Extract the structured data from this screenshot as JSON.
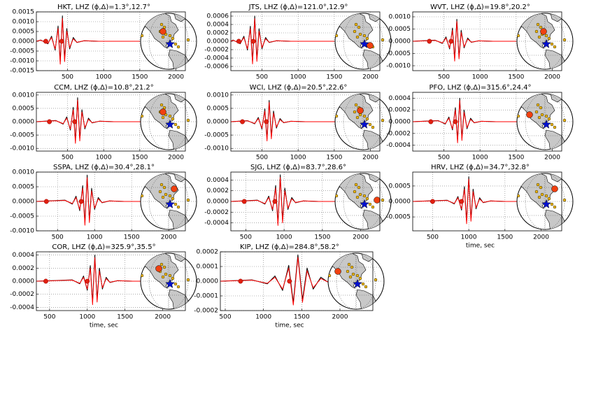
{
  "chart_data": [
    {
      "type": "line",
      "title": "HKT, LHZ (ϕ,Δ)=1.3°,12.7°",
      "xlim": [
        70,
        2130
      ],
      "xticks": [
        500,
        1000,
        1500,
        2000
      ],
      "ylim": [
        -0.0015,
        0.0015
      ],
      "yticks": [
        0.0015,
        {
          "value": 0.001,
          "label": "0.0010"
        },
        0.0005,
        {
          "value": 0,
          "label": "0.0000"
        },
        -0.0005,
        {
          "value": -0.001,
          "label": "-0.0010"
        },
        -0.0015
      ],
      "grid": true,
      "x": [
        70,
        130,
        230,
        280,
        330,
        370,
        400,
        430,
        460,
        490,
        530,
        580,
        630,
        730,
        930,
        1500
      ],
      "series": [
        {
          "color": "#000000",
          "values": [
            0,
            6.5e-05,
            -0.00013,
            0.00026,
            -0.000455,
            0.00078,
            -0.00104,
            0.0013,
            -0.00091,
            0.00065,
            -0.00039,
            0.000195,
            -6.5e-05,
            2.6e-05,
            0,
            0
          ]
        },
        {
          "color": "#ff0000",
          "values": [
            0,
            5.2e-05,
            -0.000104,
            0.000195,
            -0.00039,
            0.00065,
            -0.00117,
            0.00117,
            -0.00104,
            0.00052,
            -0.000325,
            0.00013,
            -5.2e-05,
            2.6e-05,
            0,
            0
          ]
        }
      ],
      "picks": [
        200,
        420
      ]
    },
    {
      "type": "line",
      "title": "JTS, LHZ (ϕ,Δ)=121.0°,12.9°",
      "xlim": [
        70,
        2130
      ],
      "xticks": [
        500,
        1000,
        1500,
        2000
      ],
      "ylim": [
        -0.0007,
        0.0007
      ],
      "yticks": [
        0.0006,
        0.0004,
        0.0002,
        {
          "value": 0,
          "label": "0.0000"
        },
        -0.0002,
        -0.0004,
        -0.0006
      ],
      "grid": true,
      "x": [
        70,
        100,
        200,
        250,
        300,
        340,
        370,
        400,
        430,
        460,
        500,
        550,
        600,
        700,
        900,
        1500
      ],
      "series": [
        {
          "color": "#000000",
          "values": [
            0,
            3e-05,
            -6e-05,
            0.00012,
            -0.00021,
            0.00036,
            -0.00048,
            0.0006,
            -0.00042,
            0.0003,
            -0.00018,
            9e-05,
            -3e-05,
            1.2e-05,
            0,
            0
          ]
        },
        {
          "color": "#ff0000",
          "values": [
            0,
            2.4e-05,
            -4.8e-05,
            9e-05,
            -0.00018,
            0.0003,
            -0.00054,
            0.00054,
            -0.00048,
            0.00024,
            -0.00015,
            6e-05,
            -2.4e-05,
            1.2e-05,
            0,
            0
          ]
        }
      ],
      "picks": [
        180,
        380
      ]
    },
    {
      "type": "line",
      "title": "WVT, LHZ (ϕ,Δ)=19.8°,20.2°",
      "xlim": [
        70,
        2130
      ],
      "xticks": [
        500,
        1000,
        1500,
        2000
      ],
      "ylim": [
        -0.0012,
        0.0012
      ],
      "yticks": [
        {
          "value": 0.001,
          "label": "0.0010"
        },
        0.0005,
        {
          "value": 0,
          "label": "0.0000"
        },
        -0.0005,
        {
          "value": -0.001,
          "label": "-0.0010"
        }
      ],
      "grid": true,
      "x": [
        70,
        380,
        480,
        530,
        580,
        620,
        650,
        680,
        710,
        740,
        780,
        830,
        880,
        980,
        1180,
        1500
      ],
      "series": [
        {
          "color": "#000000",
          "values": [
            0,
            4.5e-05,
            -9e-05,
            0.00018,
            -0.000315,
            0.00054,
            -0.00072,
            0.0009,
            -0.00063,
            0.00045,
            -0.00027,
            0.000135,
            -4.5e-05,
            1.8e-05,
            0,
            0
          ]
        },
        {
          "color": "#ff0000",
          "values": [
            0,
            3.6e-05,
            -7.2e-05,
            0.000135,
            -0.00027,
            0.00045,
            -0.00081,
            0.00081,
            -0.00072,
            0.00036,
            -0.000225,
            9e-05,
            -3.6e-05,
            1.8e-05,
            0,
            0
          ]
        }
      ],
      "picks": [
        300,
        600
      ]
    },
    {
      "type": "line",
      "title": "CCM, LHZ (ϕ,Δ)=10.8°,21.2°",
      "xlim": [
        70,
        2130
      ],
      "xticks": [
        500,
        1000,
        1500,
        2000
      ],
      "ylim": [
        -0.0011,
        0.0011
      ],
      "yticks": [
        {
          "value": 0.001,
          "label": "0.0010"
        },
        0.0005,
        {
          "value": 0,
          "label": "0.0000"
        },
        -0.0005,
        {
          "value": -0.001,
          "label": "-0.0010"
        }
      ],
      "grid": true,
      "x": [
        70,
        340,
        440,
        490,
        540,
        580,
        610,
        640,
        670,
        700,
        740,
        790,
        840,
        940,
        1140,
        1600
      ],
      "series": [
        {
          "color": "#000000",
          "values": [
            0,
            4.5e-05,
            -9e-05,
            0.00018,
            -0.000315,
            0.00054,
            -0.00072,
            0.0009,
            -0.00063,
            0.00045,
            -0.00027,
            0.000135,
            -4.5e-05,
            1.8e-05,
            0,
            0
          ]
        },
        {
          "color": "#ff0000",
          "values": [
            0,
            3.6e-05,
            -7.2e-05,
            0.000135,
            -0.00027,
            0.00045,
            -0.00081,
            0.00081,
            -0.00072,
            0.00036,
            -0.000225,
            9e-05,
            -3.6e-05,
            1.8e-05,
            0,
            0
          ]
        }
      ],
      "picks": [
        250,
        600
      ]
    },
    {
      "type": "line",
      "title": "WCI, LHZ (ϕ,Δ)=20.5°,22.6°",
      "xlim": [
        70,
        2130
      ],
      "xticks": [
        500,
        1000,
        1500,
        2000
      ],
      "ylim": [
        -0.0011,
        0.0011
      ],
      "yticks": [
        {
          "value": 0.001,
          "label": "0.0010"
        },
        0.0005,
        {
          "value": 0,
          "label": "0.0000"
        },
        -0.0005,
        {
          "value": -0.001,
          "label": "-0.0010"
        }
      ],
      "grid": true,
      "x": [
        70,
        300,
        400,
        450,
        500,
        540,
        570,
        600,
        630,
        660,
        700,
        750,
        800,
        900,
        1100,
        1600
      ],
      "series": [
        {
          "color": "#000000",
          "values": [
            0,
            4e-05,
            -8e-05,
            0.00016,
            -0.00028,
            0.00048,
            -0.00064,
            0.0008,
            -0.00056,
            0.0004,
            -0.00024,
            0.00012,
            -4e-05,
            1.6e-05,
            0,
            0
          ]
        },
        {
          "color": "#ff0000",
          "values": [
            0,
            3.2e-05,
            -6.4e-05,
            0.00012,
            -0.00024,
            0.0004,
            -0.00072,
            0.00072,
            -0.00064,
            0.00032,
            -0.0002,
            8e-05,
            -3.2e-05,
            1.6e-05,
            0,
            0
          ]
        }
      ],
      "picks": [
        230,
        560
      ]
    },
    {
      "type": "line",
      "title": "PFO, LHZ (ϕ,Δ)=315.6°,24.4°",
      "xlim": [
        70,
        2130
      ],
      "xticks": [
        500,
        1000,
        1500,
        2000
      ],
      "ylim": [
        -0.0005,
        0.0005
      ],
      "yticks": [
        0.0004,
        0.0002,
        {
          "value": 0,
          "label": "0.0000"
        },
        -0.0002,
        -0.0004
      ],
      "grid": true,
      "x": [
        70,
        420,
        520,
        570,
        620,
        660,
        690,
        720,
        750,
        780,
        820,
        870,
        920,
        1020,
        1220,
        1700
      ],
      "series": [
        {
          "color": "#000000",
          "values": [
            0,
            2e-05,
            -4e-05,
            8e-05,
            -0.00014,
            0.00024,
            -0.00032,
            0.0004,
            -0.00028,
            0.0002,
            -0.00012,
            6e-05,
            -2e-05,
            8e-06,
            0,
            0
          ]
        },
        {
          "color": "#ff0000",
          "values": [
            0,
            1.6e-05,
            -3.2e-05,
            6e-05,
            -0.00012,
            0.0002,
            -0.00036,
            0.00036,
            -0.00032,
            0.00016,
            -0.0001,
            4e-05,
            -1.6e-05,
            8e-06,
            0,
            0
          ]
        }
      ],
      "picks": [
        320,
        660
      ]
    },
    {
      "type": "line",
      "title": "SSPA, LHZ (ϕ,Δ)=30.4°,28.1°",
      "xlim": [
        215,
        2225
      ],
      "xticks": [
        500,
        1000,
        1500,
        2000
      ],
      "ylim": [
        -0.001,
        0.001
      ],
      "yticks": [
        {
          "value": 0.001,
          "label": "0.0010"
        },
        0.0005,
        {
          "value": 0,
          "label": "0.0000"
        },
        -0.0005,
        {
          "value": -0.001,
          "label": "-0.0010"
        }
      ],
      "grid": true,
      "x": [
        215,
        600,
        700,
        750,
        800,
        840,
        870,
        900,
        930,
        960,
        1000,
        1050,
        1100,
        1200,
        1400,
        1800
      ],
      "series": [
        {
          "color": "#000000",
          "values": [
            0,
            4.5e-05,
            -9e-05,
            0.00018,
            -0.000315,
            0.00054,
            -0.00072,
            0.0009,
            -0.00063,
            0.00045,
            -0.00027,
            0.000135,
            -4.5e-05,
            1.8e-05,
            0,
            0
          ]
        },
        {
          "color": "#ff0000",
          "values": [
            0,
            3.6e-05,
            -7.2e-05,
            0.000135,
            -0.00027,
            0.00045,
            -0.00081,
            0.00081,
            -0.00072,
            0.00036,
            -0.000225,
            9e-05,
            -3.6e-05,
            1.8e-05,
            0,
            0
          ]
        }
      ],
      "picks": [
        350,
        820
      ]
    },
    {
      "type": "line",
      "title": "SJG, LHZ (ϕ,Δ)=83.7°,28.6°",
      "xlim": [
        305,
        2250
      ],
      "xticks": [
        500,
        1000,
        1500,
        2000
      ],
      "ylim": [
        -0.00055,
        0.00055
      ],
      "yticks": [
        0.0004,
        0.0002,
        {
          "value": 0,
          "label": "0.0000"
        },
        -0.0002,
        -0.0004
      ],
      "grid": true,
      "x": [
        305,
        650,
        750,
        800,
        850,
        890,
        920,
        950,
        980,
        1010,
        1050,
        1100,
        1150,
        1250,
        1450,
        1800
      ],
      "series": [
        {
          "color": "#000000",
          "values": [
            0,
            2.5e-05,
            -5e-05,
            0.0001,
            -0.000175,
            0.0003,
            -0.0004,
            0.0005,
            -0.00035,
            0.00025,
            -0.00015,
            7.5e-05,
            -2.5e-05,
            1e-05,
            0,
            0
          ]
        },
        {
          "color": "#ff0000",
          "values": [
            0,
            2e-05,
            -4e-05,
            7.5e-05,
            -0.00015,
            0.00025,
            -0.00045,
            0.00045,
            -0.0004,
            0.0002,
            -0.000125,
            5e-05,
            -2e-05,
            1e-05,
            0,
            0
          ]
        }
      ],
      "picks": [
        480,
        880
      ]
    },
    {
      "type": "line",
      "title": "HRV, LHZ (ϕ,Δ)=34.7°,32.8°",
      "xlabel": "time, sec",
      "xlim": [
        225,
        2285
      ],
      "xticks": [
        500,
        1000,
        1500,
        2000
      ],
      "ylim": [
        -0.00095,
        0.00095
      ],
      "yticks": [
        0.0005,
        {
          "value": 0,
          "label": "0.0000"
        },
        -0.0005
      ],
      "grid": true,
      "x": [
        225,
        700,
        800,
        850,
        900,
        940,
        970,
        1000,
        1030,
        1060,
        1100,
        1150,
        1200,
        1300,
        1500,
        1800
      ],
      "series": [
        {
          "color": "#000000",
          "values": [
            0,
            4e-05,
            -8e-05,
            0.00016,
            -0.00028,
            0.00048,
            -0.00064,
            0.0008,
            -0.00056,
            0.0004,
            -0.00024,
            0.00012,
            -4e-05,
            1.6e-05,
            0,
            0
          ]
        },
        {
          "color": "#ff0000",
          "values": [
            0,
            3.2e-05,
            -6.4e-05,
            0.00012,
            -0.00024,
            0.0004,
            -0.00072,
            0.00072,
            -0.00064,
            0.00032,
            -0.0002,
            8e-05,
            -3.2e-05,
            1.6e-05,
            0,
            0
          ]
        }
      ],
      "picks": [
        500,
        900
      ]
    },
    {
      "type": "line",
      "title": "COR, LHZ (ϕ,Δ)=325.9°,35.5°",
      "xlabel": "time, sec",
      "xlim": [
        325,
        2300
      ],
      "xticks": [
        500,
        1000,
        1500,
        2000
      ],
      "ylim": [
        -0.00045,
        0.00045
      ],
      "yticks": [
        0.0004,
        0.0002,
        {
          "value": 0,
          "label": "0.0000"
        },
        -0.0002,
        -0.0004
      ],
      "grid": true,
      "x": [
        325,
        800,
        900,
        950,
        1000,
        1040,
        1070,
        1100,
        1130,
        1160,
        1200,
        1250,
        1300,
        1400,
        1600,
        1800
      ],
      "series": [
        {
          "color": "#000000",
          "values": [
            0,
            2e-05,
            -4e-05,
            8e-05,
            -0.00014,
            0.00024,
            -0.00032,
            0.0004,
            -0.00028,
            0.0002,
            -0.00012,
            6e-05,
            -2e-05,
            8e-06,
            0,
            0
          ]
        },
        {
          "color": "#ff0000",
          "values": [
            0,
            1.6e-05,
            -3.2e-05,
            6e-05,
            -0.00012,
            0.0002,
            -0.00036,
            0.00036,
            -0.00032,
            0.00016,
            -0.0001,
            4e-05,
            -1.6e-05,
            8e-06,
            0,
            0
          ]
        }
      ],
      "picks": [
        450,
        1000
      ]
    },
    {
      "type": "line",
      "title": "KIP, LHZ (ϕ,Δ)=284.8°,58.2°",
      "xlabel": "time, sec",
      "xlim": [
        436,
        2430
      ],
      "xticks": [
        500,
        1000,
        1500,
        2000
      ],
      "ylim": [
        -0.0002,
        0.0002
      ],
      "yticks": [
        0.0002,
        0.0001,
        {
          "value": 0,
          "label": "0.0000"
        },
        -0.0001,
        -0.0002
      ],
      "grid": true,
      "x": [
        436,
        850,
        1050,
        1150,
        1250,
        1330,
        1390,
        1450,
        1510,
        1570,
        1650,
        1750,
        1850,
        1950,
        2100,
        2300
      ],
      "series": [
        {
          "color": "#000000",
          "values": [
            0,
            9e-06,
            -1.8e-05,
            3.6e-05,
            -6.3e-05,
            0.000108,
            -0.000144,
            0.00018,
            -0.000126,
            9e-05,
            -5.4e-05,
            2.7e-05,
            -9e-06,
            3.6e-06,
            0,
            0
          ]
        },
        {
          "color": "#ff0000",
          "values": [
            0,
            7.2e-06,
            -1.44e-05,
            2.7e-05,
            -5.4e-05,
            9e-05,
            -0.000162,
            0.000162,
            -0.000144,
            7.2e-05,
            -4.5e-05,
            1.8e-05,
            -7.2e-06,
            3.6e-06,
            0,
            0
          ]
        }
      ],
      "picks": [
        700,
        1340
      ]
    }
  ]
}
